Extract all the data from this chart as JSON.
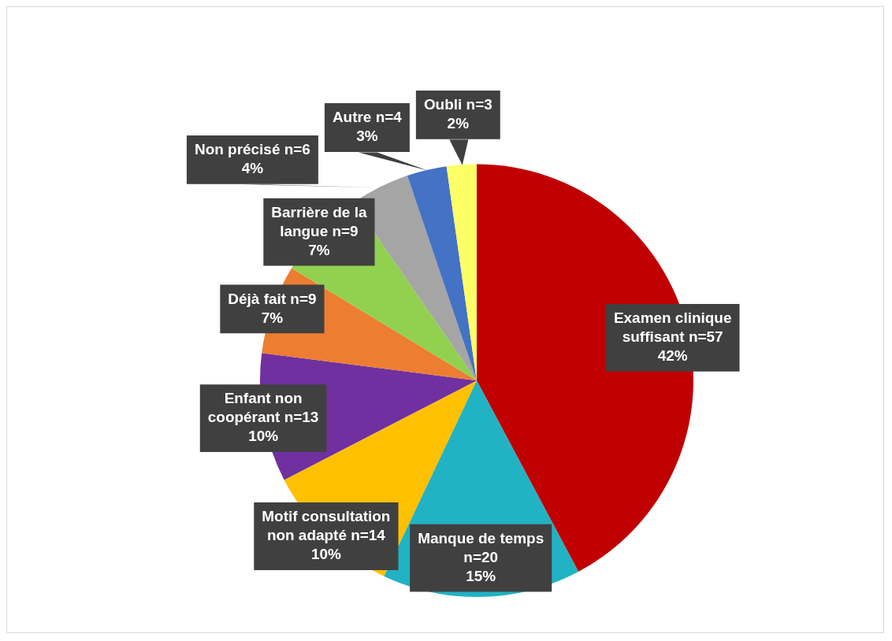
{
  "chart_data": {
    "type": "pie",
    "categories": [
      "Examen clinique suffisant",
      "Manque de temps",
      "Motif consultation non adapté",
      "Enfant non coopérant",
      "Déjà fait",
      "Barrière de la langue",
      "Non précisé",
      "Autre",
      "Oubli"
    ],
    "values": [
      57,
      20,
      14,
      13,
      9,
      9,
      6,
      4,
      3
    ],
    "value_labels": [
      "n=57\n42%",
      "n=20\n15%",
      "n=14\n10%",
      "n=13\n10%",
      "n=9\n7%",
      "n=9\n7%",
      "n=6\n4%",
      "n=4\n3%",
      "n=3\n2%"
    ],
    "colors": [
      "#c00000",
      "#21b2c3",
      "#ffc000",
      "#7030a0",
      "#ed7d31",
      "#92d050",
      "#a5a5a5",
      "#4472c4",
      "#ffff66"
    ],
    "legend": false
  }
}
